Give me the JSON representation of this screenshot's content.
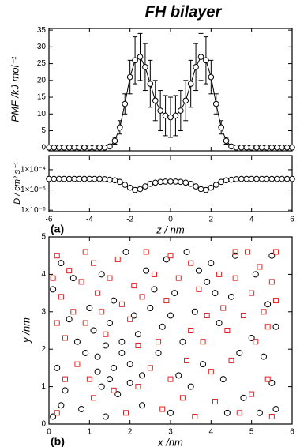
{
  "title": "FH bilayer",
  "chart_data": [
    {
      "type": "errorbar",
      "ylabel": "PMF /kJ mol⁻¹",
      "x": [
        -6,
        -5.75,
        -5.5,
        -5.25,
        -5,
        -4.75,
        -4.5,
        -4.25,
        -4,
        -3.75,
        -3.5,
        -3.25,
        -3,
        -2.75,
        -2.5,
        -2.25,
        -2,
        -1.75,
        -1.5,
        -1.25,
        -1,
        -0.75,
        -0.5,
        -0.25,
        0,
        0.25,
        0.5,
        0.75,
        1,
        1.25,
        1.5,
        1.75,
        2,
        2.25,
        2.5,
        2.75,
        3,
        3.25,
        3.5,
        3.75,
        4,
        4.25,
        4.5,
        4.75,
        5,
        5.25,
        5.5,
        5.75,
        6
      ],
      "values": [
        0,
        0,
        0,
        0,
        0,
        0,
        0,
        0,
        0,
        0,
        0,
        0,
        0.3,
        2,
        6,
        13,
        21,
        26,
        27,
        24,
        19,
        14,
        11,
        9.5,
        9,
        9.5,
        11,
        14,
        19,
        24,
        27,
        26,
        21,
        13,
        6,
        2,
        0.3,
        0,
        0,
        0,
        0,
        0,
        0,
        0,
        0,
        0,
        0,
        0,
        0
      ],
      "errors": [
        0,
        0,
        0,
        0,
        0,
        0,
        0,
        0,
        0,
        0,
        0,
        0,
        0.5,
        1,
        2,
        3,
        5,
        7,
        7,
        7,
        7,
        6,
        6,
        6,
        6,
        6,
        6,
        6,
        7,
        7,
        7,
        7,
        5,
        3,
        2,
        1,
        0.5,
        0,
        0,
        0,
        0,
        0,
        0,
        0,
        0,
        0,
        0,
        0,
        0
      ],
      "xlim": [
        -6,
        6
      ],
      "xticks": [
        -6,
        -4,
        -2,
        0,
        2,
        4,
        6
      ],
      "ylim": [
        -1,
        35.5
      ],
      "yticks": [
        0,
        5,
        10,
        15,
        20,
        25,
        30,
        35
      ]
    },
    {
      "type": "line",
      "log_y": true,
      "ylabel": "D / cm² s⁻¹",
      "xlabel": "z / nm",
      "panel_label": "(a)",
      "x": [
        -6,
        -5.75,
        -5.5,
        -5.25,
        -5,
        -4.75,
        -4.5,
        -4.25,
        -4,
        -3.75,
        -3.5,
        -3.25,
        -3,
        -2.75,
        -2.5,
        -2.25,
        -2,
        -1.75,
        -1.5,
        -1.25,
        -1,
        -0.75,
        -0.5,
        -0.25,
        0,
        0.25,
        0.5,
        0.75,
        1,
        1.25,
        1.5,
        1.75,
        2,
        2.25,
        2.5,
        2.75,
        3,
        3.25,
        3.5,
        3.75,
        4,
        4.25,
        4.5,
        4.75,
        5,
        5.25,
        5.5,
        5.75,
        6
      ],
      "values": [
        3.5e-05,
        3.5e-05,
        3.5e-05,
        3.5e-05,
        3.5e-05,
        3.5e-05,
        3.5e-05,
        3.5e-05,
        3.5e-05,
        3.5e-05,
        3.5e-05,
        3.4e-05,
        3.2e-05,
        3e-05,
        2.5e-05,
        1.8e-05,
        1.3e-05,
        1e-05,
        1.1e-05,
        1.5e-05,
        2e-05,
        2.3e-05,
        2.5e-05,
        2.6e-05,
        2.6e-05,
        2.6e-05,
        2.5e-05,
        2.3e-05,
        2e-05,
        1.5e-05,
        1.1e-05,
        1e-05,
        1.3e-05,
        1.8e-05,
        2.5e-05,
        3e-05,
        3.2e-05,
        3.4e-05,
        3.5e-05,
        3.5e-05,
        3.5e-05,
        3.5e-05,
        3.5e-05,
        3.5e-05,
        3.5e-05,
        3.5e-05,
        3.5e-05,
        3.5e-05,
        3.5e-05
      ],
      "xlim": [
        -6,
        6
      ],
      "xticks": [
        -6,
        -4,
        -2,
        0,
        2,
        4,
        6
      ],
      "ylim": [
        8.5e-07,
        0.0005
      ],
      "yticks": [
        {
          "value": 1e-06,
          "label": "1×10⁻⁶"
        },
        {
          "value": 1e-05,
          "label": "1×10⁻⁵"
        },
        {
          "value": 0.0001,
          "label": "1×10⁻⁴"
        }
      ]
    },
    {
      "type": "scatter",
      "xlabel": "x /nm",
      "ylabel": "y /nm",
      "panel_label": "(b)",
      "xlim": [
        0,
        6
      ],
      "xticks": [
        0,
        1,
        2,
        3,
        4,
        5,
        6
      ],
      "ylim": [
        0,
        5
      ],
      "yticks": [
        0,
        1,
        2,
        3,
        4,
        5
      ],
      "series": [
        {
          "color": "#000000",
          "marker": "circle",
          "x": [
            1.2,
            1.4,
            1.6,
            1.1,
            1.8,
            1.5,
            0.9,
            1.3,
            1.7,
            2.0,
            2.2,
            2.5,
            2.8,
            3.1,
            3.3,
            3.6,
            3.9,
            4.2,
            4.5,
            2.4,
            2.9,
            3.4,
            4.0,
            4.6,
            1.9,
            1.6,
            0.3,
            0.1,
            0.5,
            0.2,
            0.4,
            0.8,
            0.1,
            1.4,
            2.3,
            3.0,
            3.5,
            3.8,
            4.3,
            4.8,
            5.2,
            5.5,
            5.3,
            5.0,
            5.6,
            5.4,
            5.1,
            5.5,
            4.7,
            3.2,
            2.7,
            2.1,
            1.0,
            0.6,
            1.3,
            2.6,
            3.7,
            4.4,
            2.0,
            1.5,
            1.8,
            1.2,
            2.3,
            0.7,
            3.0,
            4.1,
            5.6,
            0.3
          ],
          "values": [
            1.8,
            2.1,
            1.5,
            2.5,
            2.2,
            1.2,
            1.9,
            1.0,
            0.8,
            1.6,
            2.4,
            3.1,
            2.6,
            3.5,
            2.2,
            3.0,
            3.8,
            2.7,
            3.4,
            4.1,
            4.4,
            4.6,
            4.3,
            4.5,
            4.6,
            3.3,
            4.3,
            3.6,
            2.8,
            1.5,
            0.9,
            0.4,
            0.2,
            0.2,
            0.5,
            0.3,
            1.0,
            1.6,
            1.2,
            0.7,
            0.3,
            1.1,
            1.8,
            2.3,
            2.6,
            3.2,
            4.0,
            4.5,
            1.9,
            1.3,
            1.9,
            2.9,
            3.1,
            3.9,
            4.0,
            3.6,
            4.1,
            0.3,
            1.1,
            2.7,
            1.9,
            1.4,
            1.3,
            2.2,
            2.9,
            3.5,
            0.4,
            0.5
          ]
        },
        {
          "color": "#e02020",
          "marker": "square",
          "x": [
            0.2,
            0.5,
            0.8,
            1.1,
            0.3,
            0.6,
            0.9,
            1.2,
            1.5,
            1.8,
            2.0,
            2.3,
            1.4,
            0.4,
            0.1,
            1.7,
            2.6,
            2.1,
            5.0,
            5.3,
            5.5,
            5.2,
            4.8,
            4.6,
            5.6,
            5.4,
            4.9,
            5.1,
            4.4,
            3.9,
            3.5,
            3.2,
            2.9,
            3.7,
            4.2,
            2.7,
            2.5,
            3.4,
            4.0,
            4.5,
            5.4,
            5.0,
            4.1,
            3.3,
            2.8,
            1.9,
            1.1,
            0.4,
            0.2,
            0.7,
            1.0,
            1.6,
            2.2,
            3.0,
            3.8,
            4.3,
            5.5,
            4.7,
            3.6,
            2.4,
            3.0,
            3.5,
            0.9,
            1.3,
            0.2,
            5.6,
            4.6,
            2.2
          ],
          "values": [
            4.5,
            4.1,
            3.8,
            4.3,
            3.4,
            3.0,
            2.7,
            3.5,
            3.9,
            3.2,
            2.8,
            3.4,
            2.4,
            2.3,
            3.9,
            4.4,
            4.0,
            3.7,
            3.5,
            3.0,
            3.8,
            4.2,
            2.9,
            3.9,
            3.3,
            2.6,
            4.6,
            2.2,
            2.5,
            2.9,
            2.5,
            3.9,
            3.3,
            3.6,
            4.0,
            2.2,
            1.5,
            1.7,
            1.4,
            1.7,
            1.2,
            0.8,
            0.6,
            0.7,
            0.4,
            0.3,
            0.7,
            1.2,
            0.3,
            1.6,
            1.2,
            0.9,
            2.1,
            1.2,
            2.2,
            3.1,
            0.2,
            0.3,
            0.2,
            4.6,
            4.5,
            4.3,
            4.6,
            3.0,
            2.7,
            4.6,
            4.6,
            1.0
          ]
        }
      ]
    }
  ]
}
